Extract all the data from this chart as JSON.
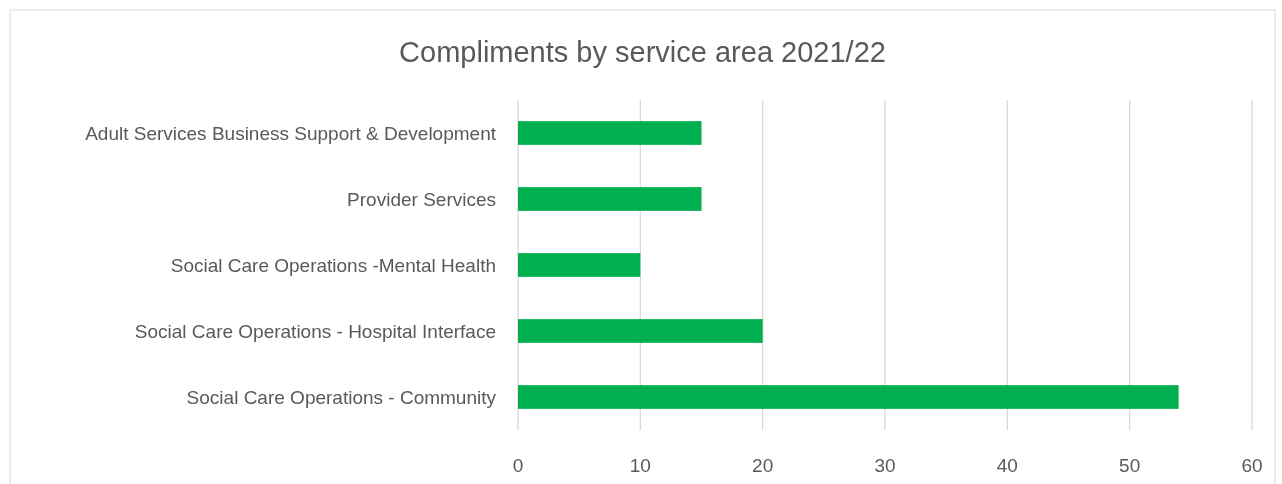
{
  "chart_data": {
    "type": "bar",
    "orientation": "horizontal",
    "title": "Compliments by service area 2021/22",
    "categories": [
      "Adult Services Business Support & Development",
      "Provider Services",
      "Social Care Operations -Mental Health",
      "Social Care Operations - Hospital Interface",
      "Social Care Operations - Community"
    ],
    "values": [
      15,
      15,
      10,
      20,
      54
    ],
    "color": "#00b050",
    "xlim": [
      0,
      60
    ],
    "xticks": [
      0,
      10,
      20,
      30,
      40,
      50,
      60
    ],
    "grid": "x"
  }
}
